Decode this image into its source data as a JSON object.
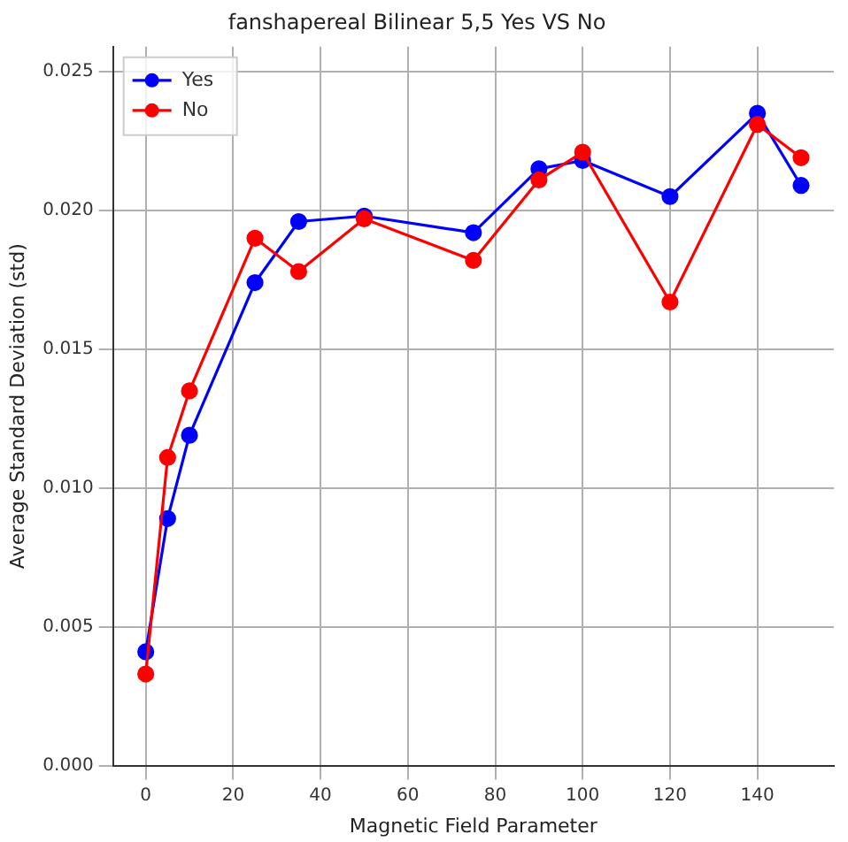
{
  "chart_data": {
    "type": "line",
    "title": "fanshapereal Bilinear 5,5 Yes VS No",
    "xlabel": "Magnetic Field Parameter",
    "ylabel": "Average Standard Deviation (std)",
    "x": [
      0,
      5,
      10,
      25,
      35,
      50,
      75,
      90,
      100,
      120,
      140,
      150
    ],
    "series": [
      {
        "name": "Yes",
        "color": "#0000ff",
        "values": [
          0.0041,
          0.0089,
          0.0119,
          0.0174,
          0.0196,
          0.0198,
          0.0192,
          0.0215,
          0.0218,
          0.0205,
          0.0235,
          0.0209
        ]
      },
      {
        "name": "No",
        "color": "#ff0000",
        "values": [
          0.0033,
          0.0111,
          0.0135,
          0.019,
          0.0178,
          0.0197,
          0.0182,
          0.0211,
          0.0221,
          0.0167,
          0.0231,
          0.0219
        ]
      }
    ],
    "xlim": [
      -7.5,
      157.5
    ],
    "xticks": [
      0,
      20,
      40,
      60,
      80,
      100,
      120,
      140
    ],
    "ylim": [
      0,
      0.0259
    ],
    "yticks": [
      {
        "value": 0,
        "label": "0.000"
      },
      {
        "value": 0.005,
        "label": "0.005"
      },
      {
        "value": 0.01,
        "label": "0.010"
      },
      {
        "value": 0.015,
        "label": "0.015"
      },
      {
        "value": 0.02,
        "label": "0.020"
      },
      {
        "value": 0.025,
        "label": "0.025"
      }
    ],
    "grid": true,
    "legend": "top left",
    "marker": "circle",
    "line_style": "solid"
  }
}
